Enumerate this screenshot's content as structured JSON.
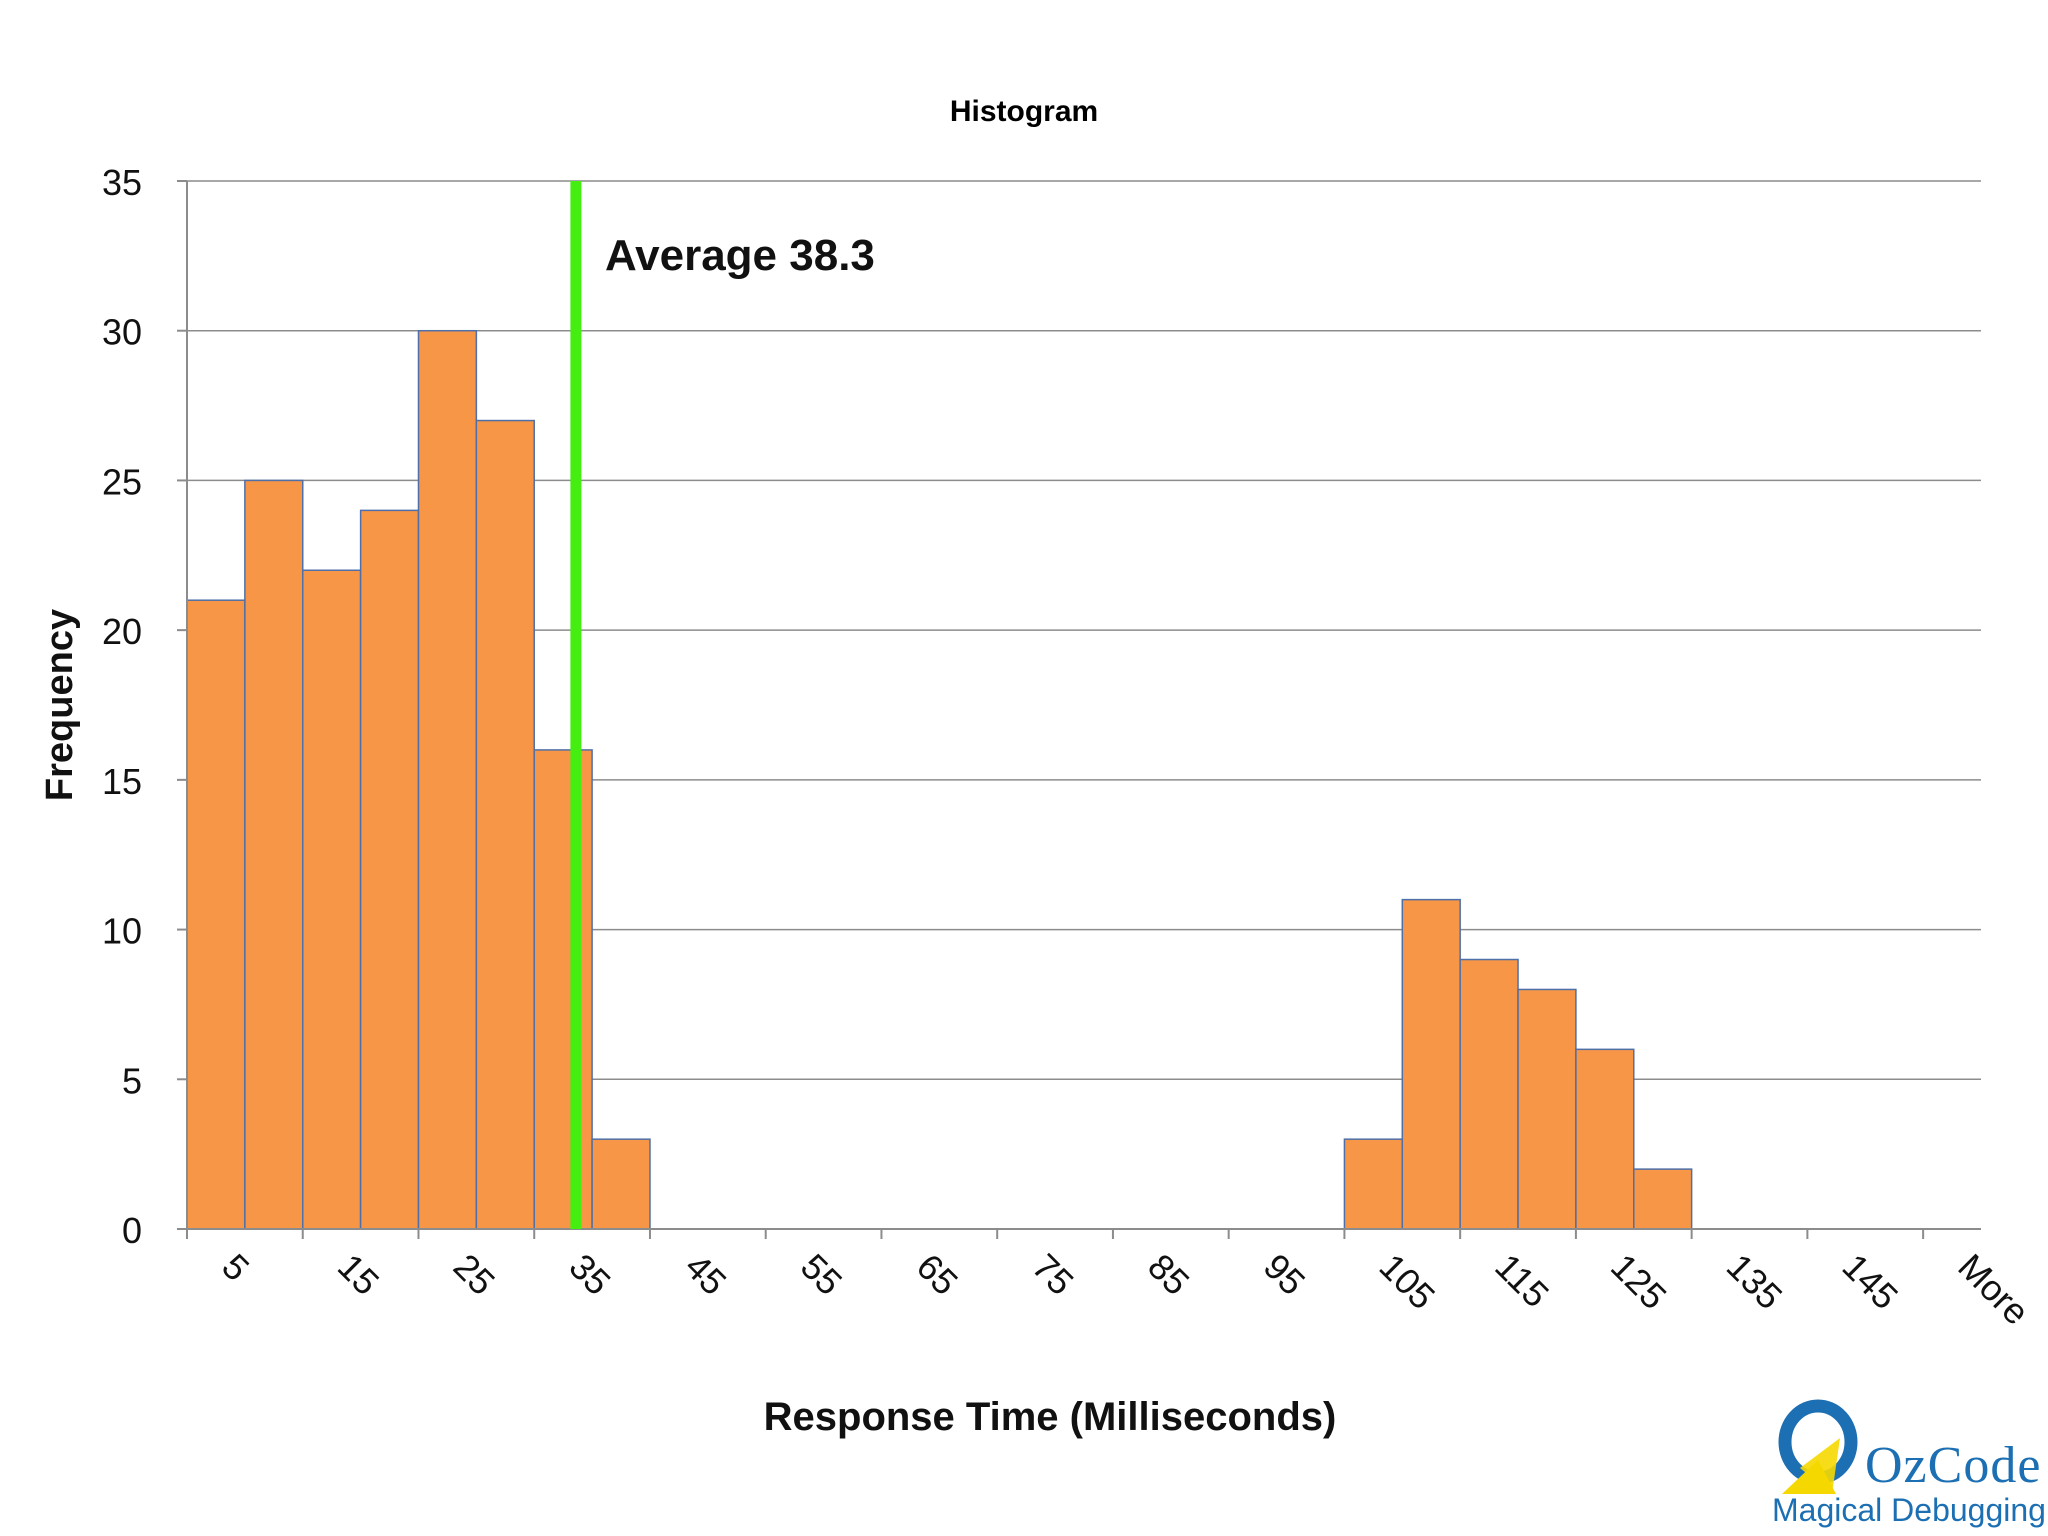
{
  "chart_data": {
    "type": "bar",
    "title": "Histogram",
    "xlabel": "Response Time (Milliseconds)",
    "ylabel": "Frequency",
    "ylim": [
      0,
      35
    ],
    "yticks": [
      0,
      5,
      10,
      15,
      20,
      25,
      30,
      35
    ],
    "grid": true,
    "x_tick_labels": [
      "5",
      "15",
      "25",
      "35",
      "45",
      "55",
      "65",
      "75",
      "85",
      "95",
      "105",
      "115",
      "125",
      "135",
      "145",
      "More"
    ],
    "bins": [
      {
        "from": 0,
        "to": 5,
        "value": 21
      },
      {
        "from": 5,
        "to": 10,
        "value": 25
      },
      {
        "from": 10,
        "to": 15,
        "value": 22
      },
      {
        "from": 15,
        "to": 20,
        "value": 24
      },
      {
        "from": 20,
        "to": 25,
        "value": 30
      },
      {
        "from": 25,
        "to": 30,
        "value": 27
      },
      {
        "from": 30,
        "to": 35,
        "value": 16
      },
      {
        "from": 35,
        "to": 40,
        "value": 3
      },
      {
        "from": 40,
        "to": 45,
        "value": 0
      },
      {
        "from": 45,
        "to": 50,
        "value": 0
      },
      {
        "from": 50,
        "to": 55,
        "value": 0
      },
      {
        "from": 55,
        "to": 60,
        "value": 0
      },
      {
        "from": 60,
        "to": 65,
        "value": 0
      },
      {
        "from": 65,
        "to": 70,
        "value": 0
      },
      {
        "from": 70,
        "to": 75,
        "value": 0
      },
      {
        "from": 75,
        "to": 80,
        "value": 0
      },
      {
        "from": 80,
        "to": 85,
        "value": 0
      },
      {
        "from": 85,
        "to": 90,
        "value": 0
      },
      {
        "from": 90,
        "to": 95,
        "value": 0
      },
      {
        "from": 95,
        "to": 100,
        "value": 0
      },
      {
        "from": 100,
        "to": 105,
        "value": 3
      },
      {
        "from": 105,
        "to": 110,
        "value": 11
      },
      {
        "from": 110,
        "to": 115,
        "value": 9
      },
      {
        "from": 115,
        "to": 120,
        "value": 8
      },
      {
        "from": 120,
        "to": 125,
        "value": 6
      },
      {
        "from": 125,
        "to": 130,
        "value": 2
      },
      {
        "from": 130,
        "to": 135,
        "value": 0
      },
      {
        "from": 135,
        "to": 140,
        "value": 0
      },
      {
        "from": 140,
        "to": 145,
        "value": 0
      },
      {
        "from": 145,
        "to": 150,
        "value": 0
      },
      {
        "from": 150,
        "to": 155,
        "value": 0
      }
    ],
    "bar_color": "#f79646",
    "bar_edge_color": "#4f6fa8",
    "average": {
      "value": 38.3,
      "label": "Average 38.3",
      "x": 33.6,
      "color": "#44ee11"
    }
  },
  "branding": {
    "logo_name": "OzCode",
    "tagline": "Magical Debugging",
    "color": "#1d6fb3",
    "accent": "#f5d800"
  }
}
